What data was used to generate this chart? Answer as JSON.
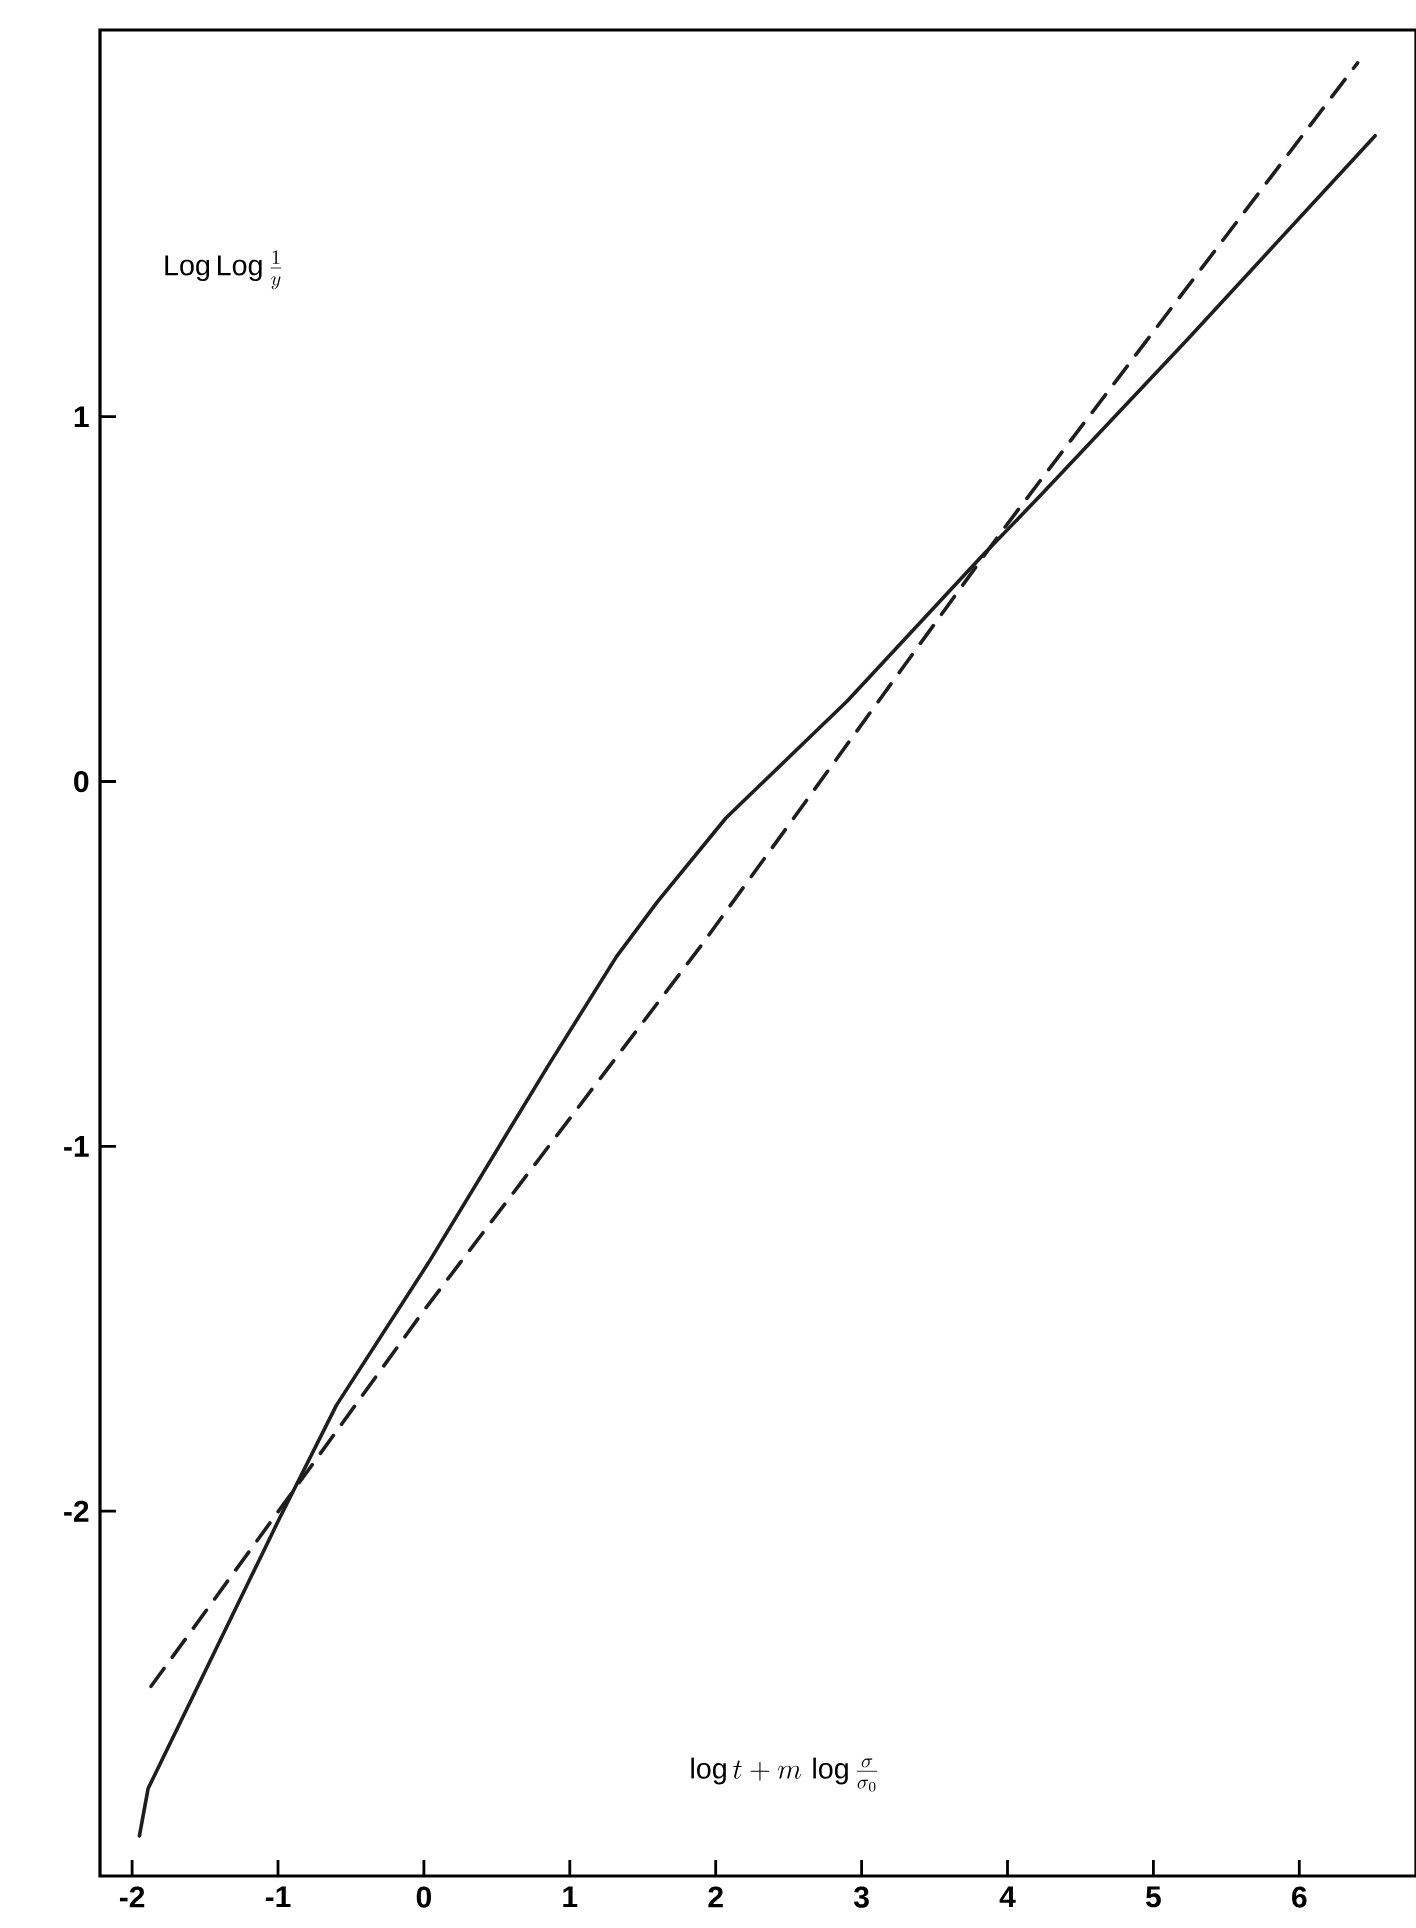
{
  "chart_data": {
    "type": "line",
    "xlabel": "\\log t + m\\,\\log\\frac{\\sigma}{\\sigma_0}",
    "ylabel": "\\mathrm{Log\\,Log}\\,\\frac{1}{y}",
    "xlim": [
      -2.22,
      6.8
    ],
    "ylim": [
      -3.0,
      2.06
    ],
    "xticks": [
      -2,
      -1,
      0,
      1,
      2,
      3,
      4,
      5,
      6
    ],
    "yticks": [
      -2,
      -1,
      0,
      1
    ],
    "grid": false,
    "legend": false,
    "marker": "none",
    "series": [
      {
        "color": "#1e1e1e",
        "line_style": "solid",
        "x": [
          -1.95,
          -1.89,
          -0.99,
          -0.6,
          0.03,
          0.85,
          1.32,
          1.6,
          2.07,
          2.9,
          3.83,
          4.24,
          5.23,
          6.52
        ],
        "values": [
          -2.89,
          -2.76,
          -2.02,
          -1.71,
          -1.32,
          -0.78,
          -0.48,
          -0.33,
          -0.1,
          0.22,
          0.62,
          0.79,
          1.21,
          1.77
        ]
      },
      {
        "color": "#1e1e1e",
        "line_style": "dashed",
        "x": [
          -1.87,
          -0.96,
          0,
          1.9,
          3.95,
          6.4
        ],
        "values": [
          -2.48,
          -1.98,
          -1.45,
          -0.45,
          0.68,
          1.97
        ]
      }
    ]
  }
}
